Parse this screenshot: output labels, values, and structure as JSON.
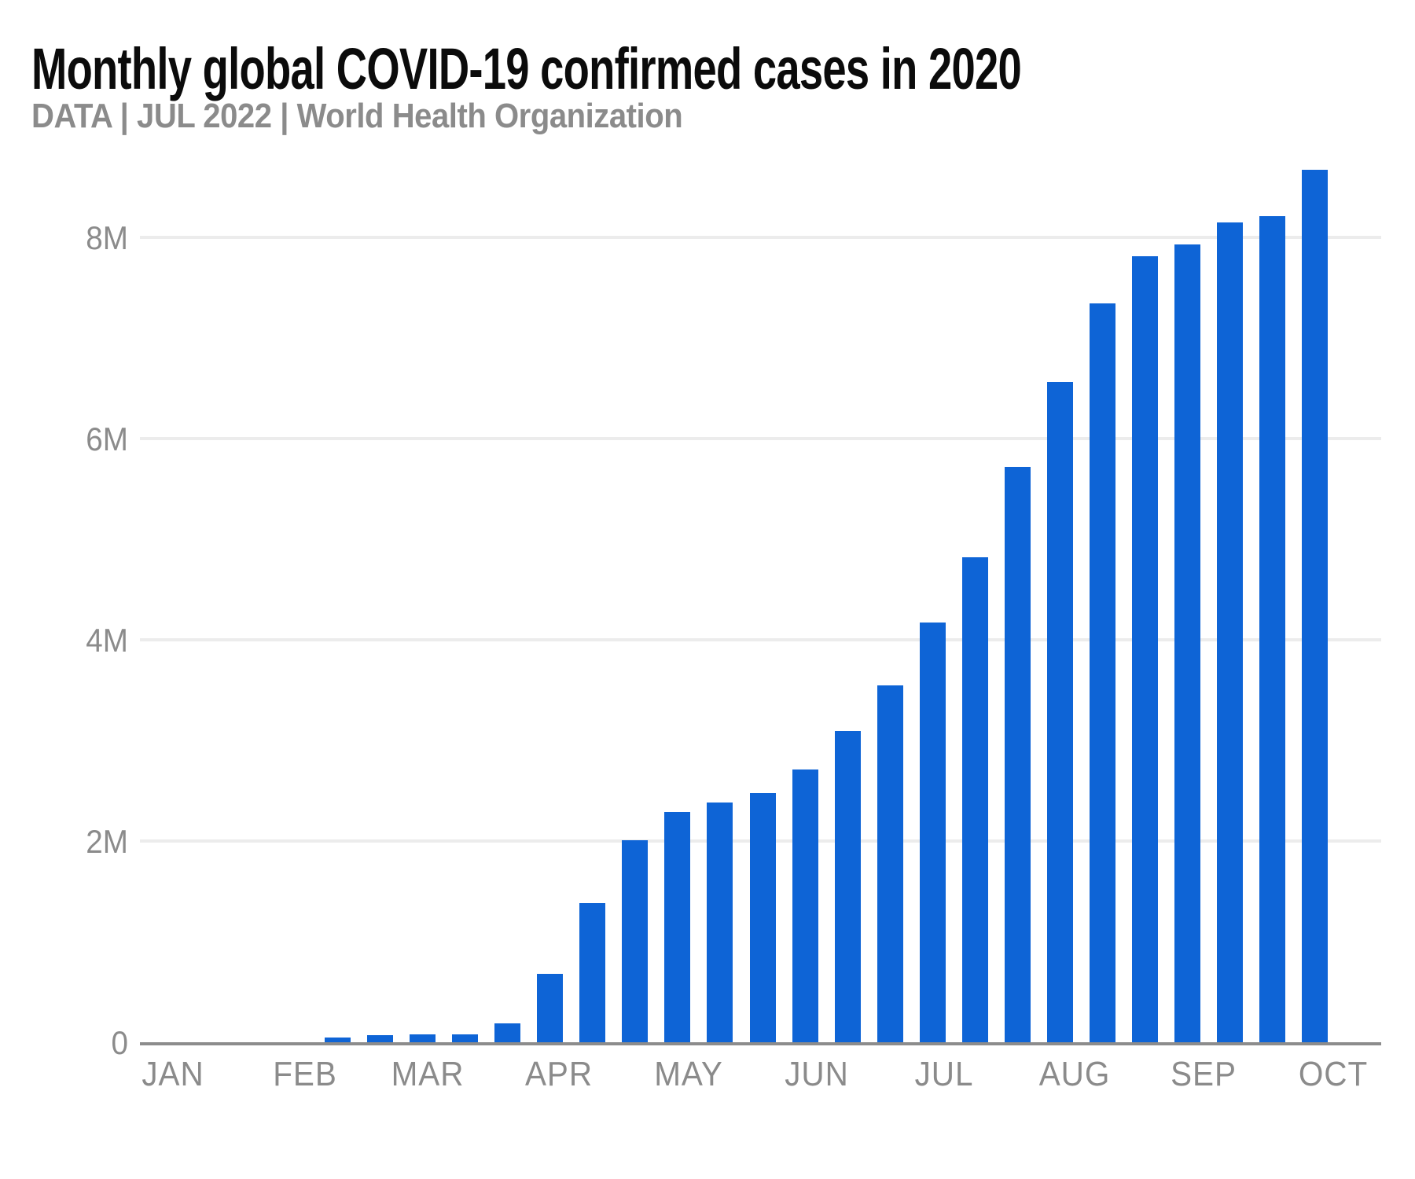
{
  "header": {
    "title": "Monthly global COVID-19 confirmed cases in 2020",
    "subtitle": "DATA | JUL 2022 | World Health Organization"
  },
  "chart_data": {
    "type": "bar",
    "title": "Monthly global COVID-19 confirmed cases in 2020",
    "subtitle": "DATA | JUL 2022 | World Health Organization",
    "unit": "cases (millions)",
    "x_axis": {
      "tick_labels": [
        "JAN",
        "FEB",
        "MAR",
        "APR",
        "MAY",
        "JUN",
        "JUL",
        "AUG",
        "SEP",
        "OCT"
      ]
    },
    "y_axis": {
      "tick_labels": [
        "0",
        "2M",
        "4M",
        "6M",
        "8M"
      ],
      "tick_values_millions": [
        0,
        2,
        4,
        6,
        8
      ],
      "range_millions": [
        0,
        8.9
      ],
      "gridlines": true
    },
    "series": [
      {
        "name": "Confirmed cases (millions)",
        "values_millions": [
          0.05,
          0.07,
          0.08,
          0.08,
          0.19,
          0.68,
          1.38,
          2.01,
          2.29,
          2.38,
          2.48,
          2.71,
          3.09,
          3.55,
          4.17,
          4.82,
          5.72,
          6.56,
          7.34,
          7.81,
          7.93,
          8.15,
          8.21,
          8.67
        ]
      }
    ],
    "legend": false,
    "colors": {
      "bar": "#0e64d6",
      "gridline": "#ececec",
      "axis_line": "#8c8c8c",
      "tick_label": "#8b8b8b",
      "title": "#0b0b0b",
      "subtitle": "#8b8b8b",
      "background": "#ffffff"
    }
  }
}
